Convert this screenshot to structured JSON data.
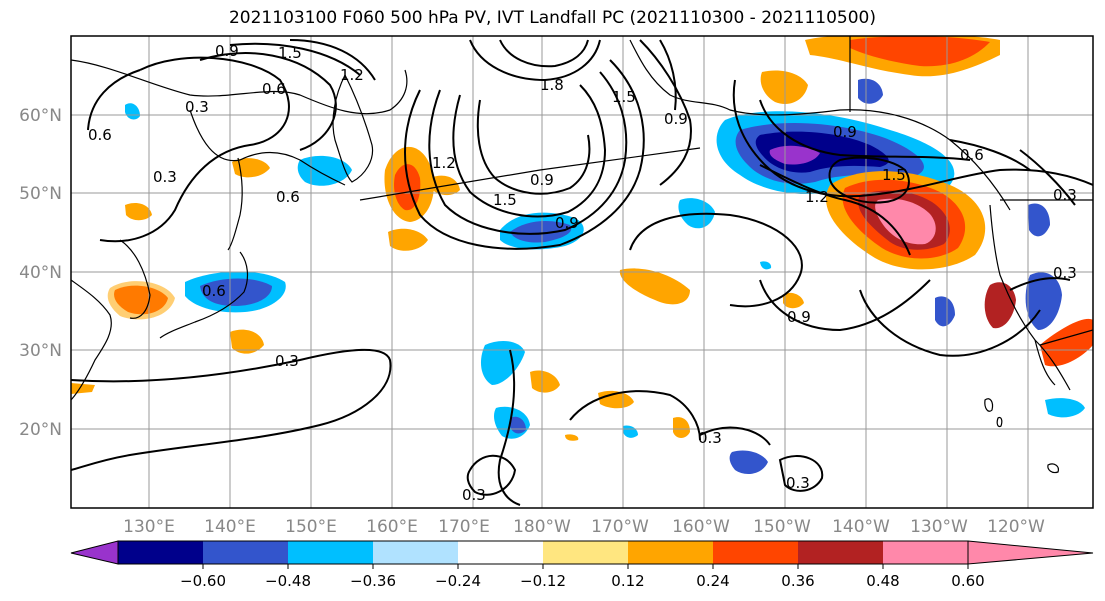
{
  "title": "2021103100 F060 500 hPa PV, IVT Landfall PC (2021110300 - 2021110500)",
  "lat_labels": [
    "60°N",
    "50°N",
    "40°N",
    "30°N",
    "20°N"
  ],
  "lon_labels": [
    "130°E",
    "140°E",
    "150°E",
    "160°E",
    "170°E",
    "180°W",
    "170°W",
    "160°W",
    "150°W",
    "140°W",
    "130°W",
    "120°W"
  ],
  "colorbar": {
    "tick_labels": [
      "−0.60",
      "−0.48",
      "−0.36",
      "−0.24",
      "−0.12",
      "0.12",
      "0.24",
      "0.36",
      "0.48",
      "0.60"
    ],
    "colors": [
      "#9933cc",
      "#00008b",
      "#3355cc",
      "#00bfff",
      "#b0e2ff",
      "#ffffff",
      "#ffe680",
      "#ffa500",
      "#ff4500",
      "#b22222",
      "#ff88aa"
    ]
  },
  "contour_labels": [
    "0.9",
    "1.5",
    "1.2",
    "0.6",
    "0.3",
    "0.6",
    "0.3",
    "0.6",
    "1.8",
    "1.5",
    "0.9",
    "1.2",
    "1.5",
    "0.9",
    "0.9",
    "0.6",
    "0.3",
    "1.2",
    "1.5",
    "0.9",
    "0.6",
    "0.9",
    "0.3",
    "0.3",
    "0.3",
    "0.3",
    "0.3"
  ]
}
